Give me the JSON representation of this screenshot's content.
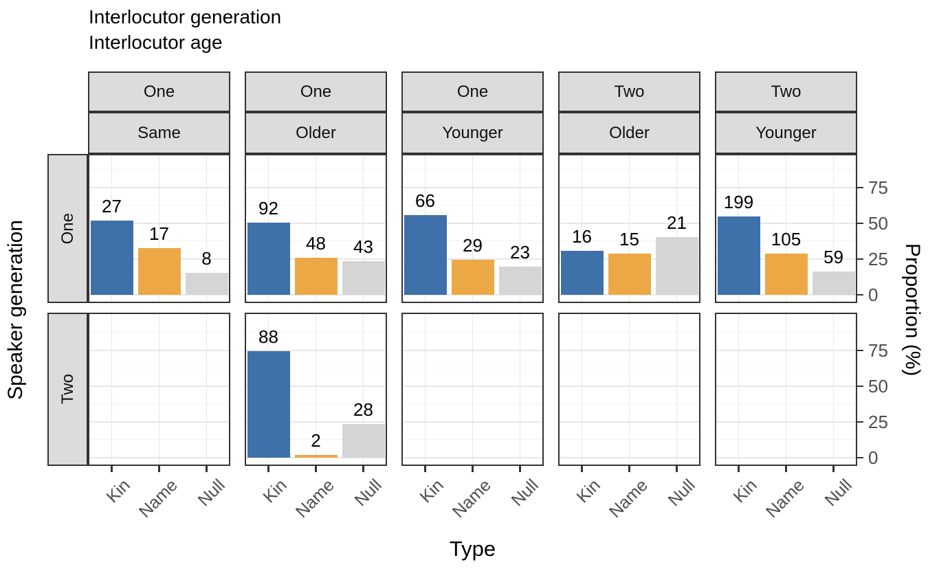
{
  "title": {
    "line1": "Interlocutor generation",
    "line2": "Interlocutor age"
  },
  "axes": {
    "x_title": "Type",
    "y_title": "Proportion (%)",
    "row_facet_title": "Speaker generation",
    "y_ticks": [
      0,
      25,
      50,
      75
    ],
    "x_categories": [
      "Kin",
      "Name",
      "Null"
    ]
  },
  "colors": {
    "kin_bar": "#3E70A9",
    "name_bar": "#EDA846",
    "null_bar": "#D5D5D5",
    "strip_bg": "#DCDCDC",
    "border": "#333333",
    "grid_major": "#E7E7E7",
    "grid_minor": "#F2F2F2",
    "axis_text": "#4D4D4D"
  },
  "chart_data": {
    "type": "bar",
    "title": "Interlocutor generation / Interlocutor age",
    "xlabel": "Type",
    "ylabel": "Proportion (%)",
    "ylim": [
      0,
      100
    ],
    "grid": true,
    "categories": [
      "Kin",
      "Name",
      "Null"
    ],
    "facet_columns": [
      {
        "generation": "One",
        "age": "Same"
      },
      {
        "generation": "One",
        "age": "Older"
      },
      {
        "generation": "One",
        "age": "Younger"
      },
      {
        "generation": "Two",
        "age": "Older"
      },
      {
        "generation": "Two",
        "age": "Younger"
      }
    ],
    "facet_rows": [
      "One",
      "Two"
    ],
    "panels": [
      {
        "speaker_generation": "One",
        "interlocutor_generation": "One",
        "interlocutor_age": "Same",
        "counts": [
          27,
          17,
          8
        ],
        "percents": [
          51.9,
          32.7,
          15.4
        ]
      },
      {
        "speaker_generation": "One",
        "interlocutor_generation": "One",
        "interlocutor_age": "Older",
        "counts": [
          92,
          48,
          43
        ],
        "percents": [
          50.3,
          26.2,
          23.5
        ]
      },
      {
        "speaker_generation": "One",
        "interlocutor_generation": "One",
        "interlocutor_age": "Younger",
        "counts": [
          66,
          29,
          23
        ],
        "percents": [
          55.9,
          24.6,
          19.5
        ]
      },
      {
        "speaker_generation": "One",
        "interlocutor_generation": "Two",
        "interlocutor_age": "Older",
        "counts": [
          16,
          15,
          21
        ],
        "percents": [
          30.8,
          28.8,
          40.4
        ]
      },
      {
        "speaker_generation": "One",
        "interlocutor_generation": "Two",
        "interlocutor_age": "Younger",
        "counts": [
          199,
          105,
          59
        ],
        "percents": [
          54.8,
          28.9,
          16.3
        ]
      },
      {
        "speaker_generation": "Two",
        "interlocutor_generation": "One",
        "interlocutor_age": "Same",
        "counts": [],
        "percents": []
      },
      {
        "speaker_generation": "Two",
        "interlocutor_generation": "One",
        "interlocutor_age": "Older",
        "counts": [
          88,
          2,
          28
        ],
        "percents": [
          74.6,
          1.7,
          23.7
        ]
      },
      {
        "speaker_generation": "Two",
        "interlocutor_generation": "One",
        "interlocutor_age": "Younger",
        "counts": [],
        "percents": []
      },
      {
        "speaker_generation": "Two",
        "interlocutor_generation": "Two",
        "interlocutor_age": "Older",
        "counts": [],
        "percents": []
      },
      {
        "speaker_generation": "Two",
        "interlocutor_generation": "Two",
        "interlocutor_age": "Younger",
        "counts": [],
        "percents": []
      }
    ]
  }
}
